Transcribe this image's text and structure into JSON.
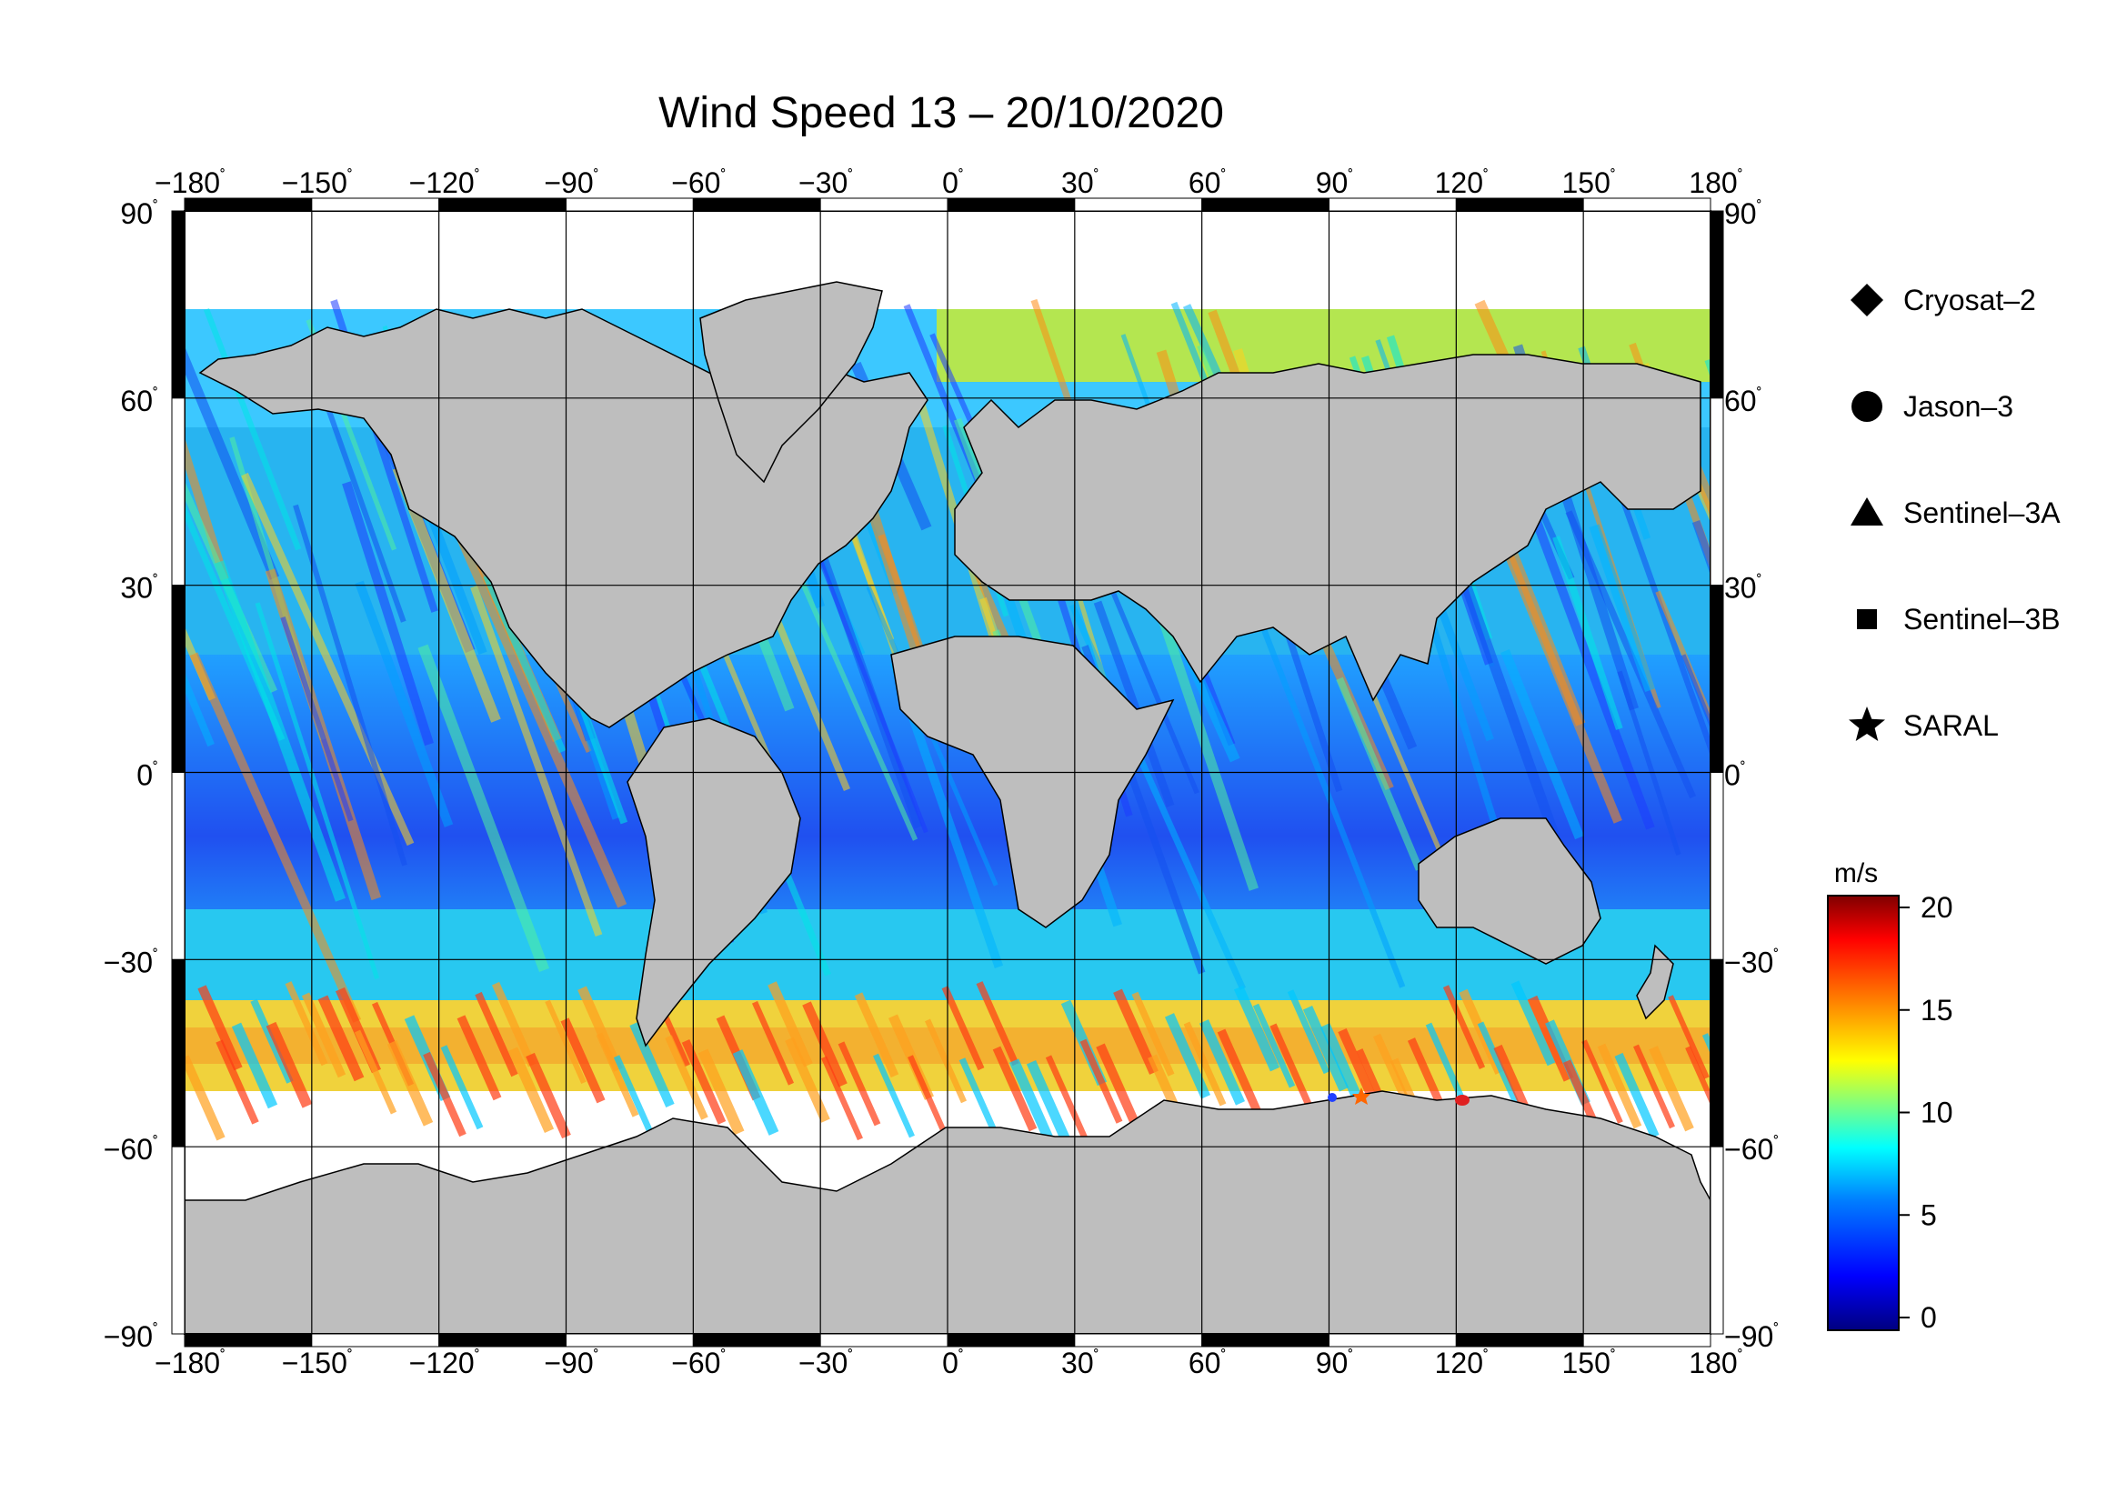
{
  "map": {
    "title": "Wind Speed 13 – 20/10/2020",
    "projection": "equirectangular",
    "lon_ticks": [
      "−180",
      "−150",
      "−120",
      "−90",
      "−60",
      "−30",
      "0",
      "30",
      "60",
      "90",
      "120",
      "150",
      "180"
    ],
    "lat_ticks": [
      "90",
      "60",
      "30",
      "0",
      "−30",
      "−60",
      "−90"
    ],
    "degree_mark": "˚",
    "land_color": "#bebebe",
    "ice_color": "#ffffff",
    "graticule": true
  },
  "legend": {
    "items": [
      {
        "label": "Cryosat–2",
        "icon": "diamond-icon"
      },
      {
        "label": "Jason–3",
        "icon": "circle-icon"
      },
      {
        "label": "Sentinel–3A",
        "icon": "triangle-icon"
      },
      {
        "label": "Sentinel–3B",
        "icon": "square-icon"
      },
      {
        "label": "SARAL",
        "icon": "star-icon"
      }
    ]
  },
  "colorbar": {
    "unit": "m/s",
    "ticks": [
      "20",
      "15",
      "10",
      "5",
      "0"
    ],
    "range": [
      0,
      20
    ],
    "colormap": [
      "#00007f",
      "#0000ff",
      "#007fff",
      "#00ffff",
      "#7fff7f",
      "#ffff00",
      "#ff7f00",
      "#ff0000",
      "#7f0000"
    ]
  }
}
